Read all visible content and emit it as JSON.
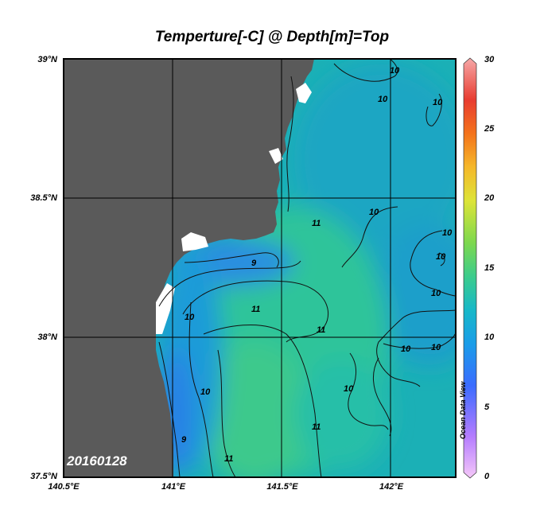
{
  "map": {
    "title": "Temperture[-C] @ Depth[m]=Top",
    "date_stamp": "20160128",
    "watermark": "Ocean Data View",
    "lat_labels": [
      "39°N",
      "38.5°N",
      "38°N",
      "37.5°N"
    ],
    "lon_labels": [
      "140.5°E",
      "141°E",
      "141.5°E",
      "142°E"
    ],
    "extent": {
      "lon": [
        140.5,
        142.3
      ],
      "lat": [
        37.5,
        39.0
      ]
    },
    "land_color": "#5a5a5a",
    "grid": true
  },
  "colorbar": {
    "labels": [
      "30",
      "25",
      "20",
      "15",
      "10",
      "5",
      "0"
    ],
    "range": [
      0,
      30
    ],
    "colors": [
      "#f2b3f5",
      "#a46bff",
      "#2f6fff",
      "#16a7e0",
      "#20c0a0",
      "#5fd66a",
      "#cfe63a",
      "#f3b22a",
      "#f36a1e",
      "#e83a2f",
      "#f4a6a6"
    ]
  },
  "contour_labels": [
    "10",
    "10",
    "10",
    "11",
    "10",
    "10",
    "10",
    "9",
    "10",
    "11",
    "11",
    "10",
    "10",
    "10",
    "10",
    "9",
    "11",
    "10",
    "11"
  ]
}
